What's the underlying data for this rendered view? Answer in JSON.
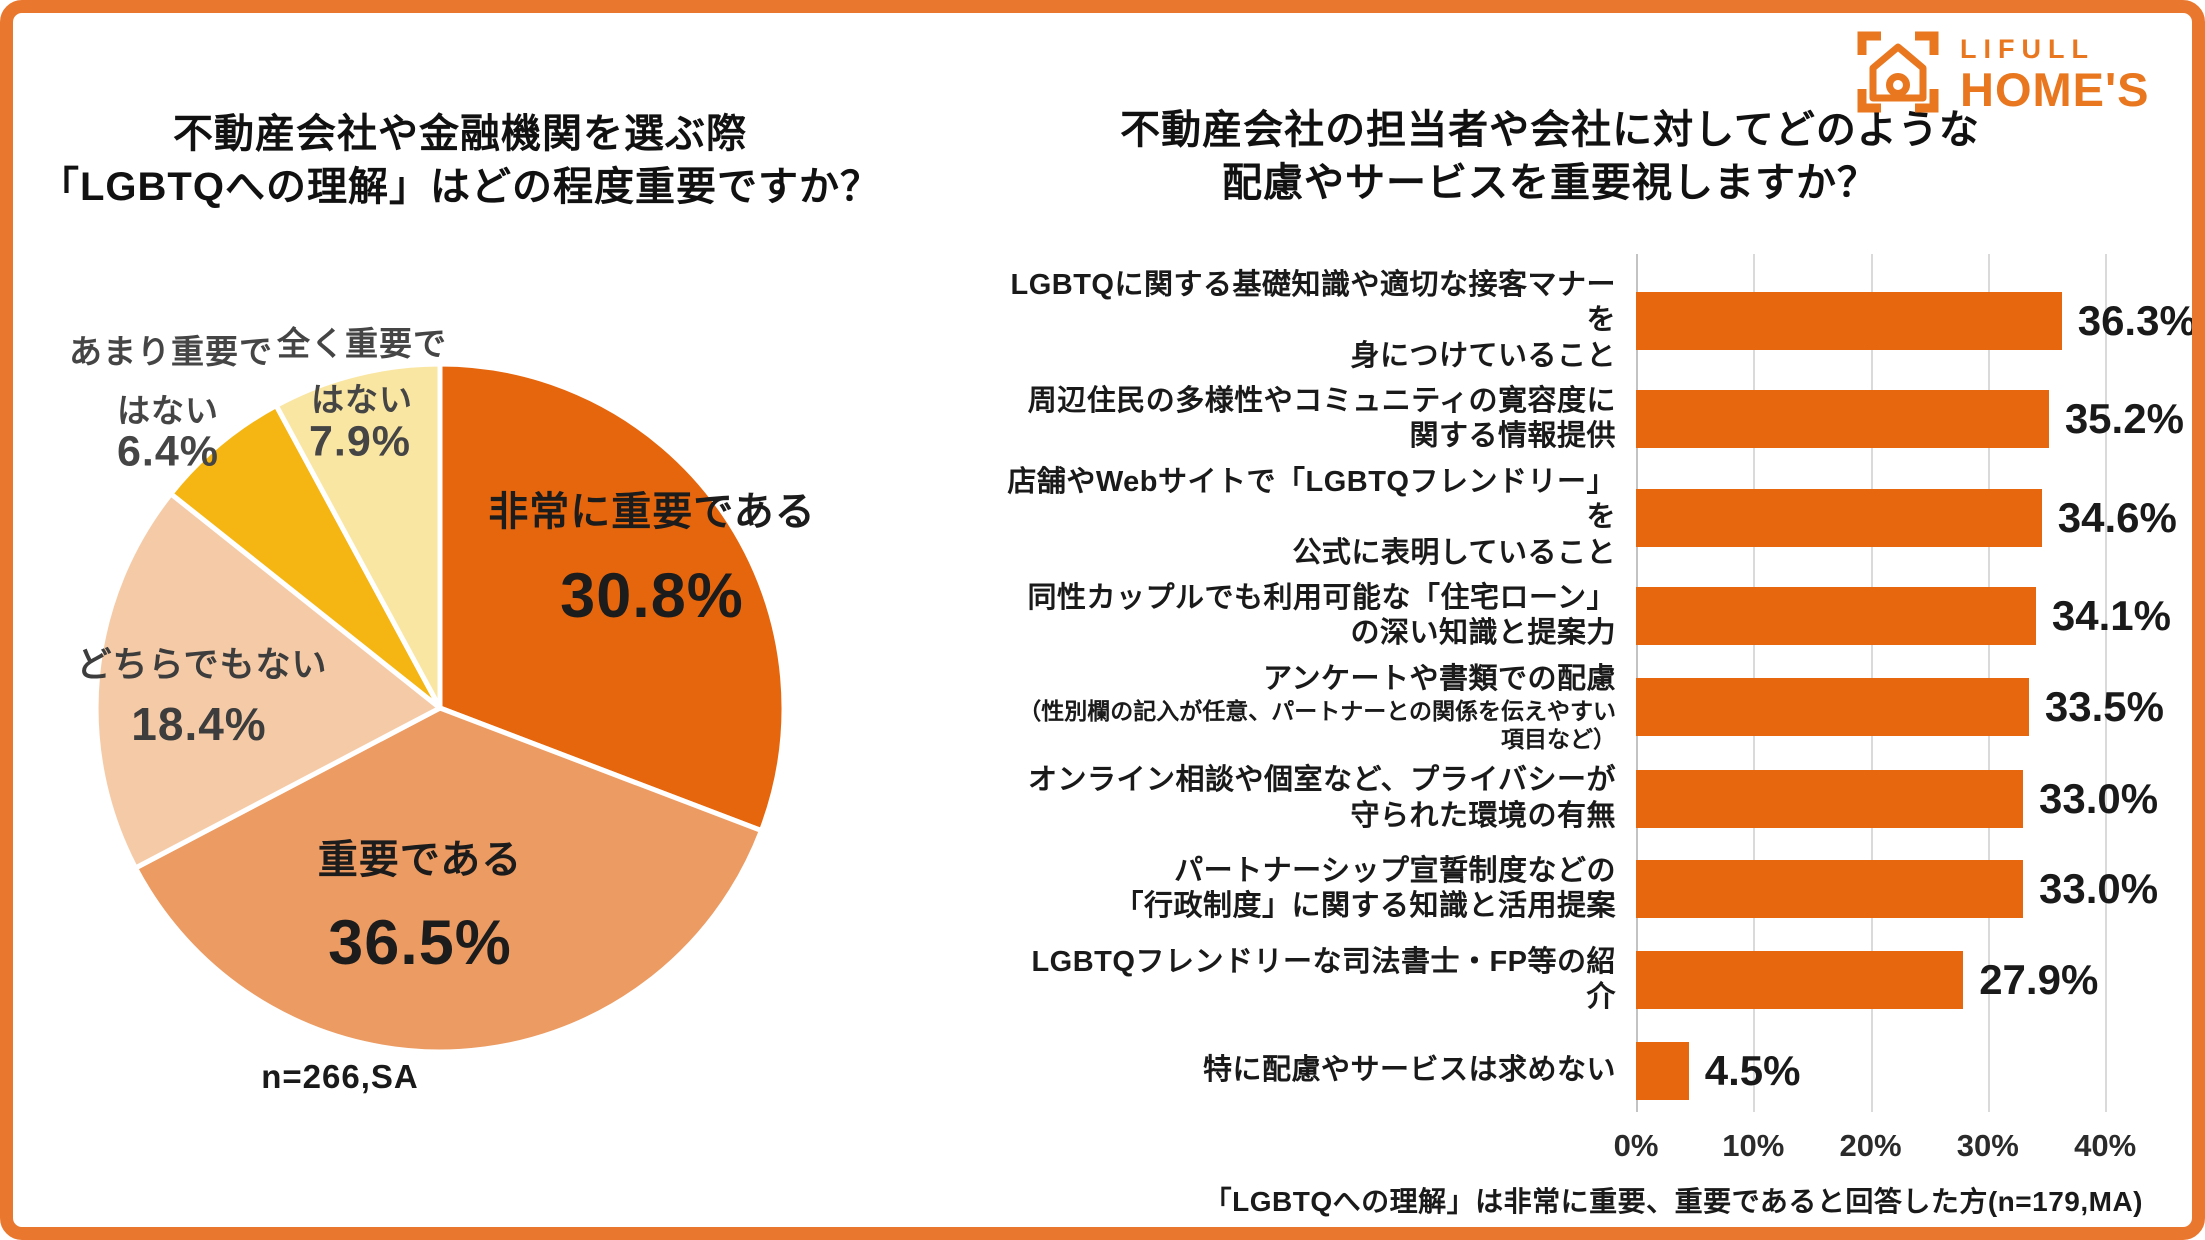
{
  "logo": {
    "line1": "LIFULL",
    "line2": "HOME'S",
    "brand_color": "#E8771F"
  },
  "frame_color": "#E9772E",
  "chart_data": [
    {
      "type": "pie",
      "title": "不動産会社や金融機関を選ぶ際「LGBTQへの理解」はどの程度重要ですか？",
      "title_lines": [
        "不動産会社や金融機関を選ぶ際",
        "「LGBTQへの理解」はどの程度重要ですか？"
      ],
      "note": "n=266,SA",
      "start_angle_deg": -90,
      "direction": "clockwise",
      "segments": [
        {
          "label": "非常に重要である",
          "label_lines": [
            "非常に重要である"
          ],
          "value": 30.8,
          "value_text": "30.8%",
          "color": "#E6660D"
        },
        {
          "label": "重要である",
          "label_lines": [
            "重要である"
          ],
          "value": 36.5,
          "value_text": "36.5%",
          "color": "#EC9B62"
        },
        {
          "label": "どちらでもない",
          "label_lines": [
            "どちらでもない"
          ],
          "value": 18.4,
          "value_text": "18.4%",
          "color": "#F5CBA7"
        },
        {
          "label": "あまり重要ではない",
          "label_lines": [
            "あまり重要で",
            "はない"
          ],
          "value": 6.4,
          "value_text": "6.4%",
          "color": "#F5B513"
        },
        {
          "label": "全く重要ではない",
          "label_lines": [
            "全く重要で",
            "はない"
          ],
          "value": 7.9,
          "value_text": "7.9%",
          "color": "#FAE6A3"
        }
      ]
    },
    {
      "type": "bar",
      "orientation": "horizontal",
      "title": "不動産会社の担当者や会社に対してどのような配慮やサービスを重要視しますか？",
      "title_lines": [
        "不動産会社の担当者や会社に対してどのような",
        "配慮やサービスを重要視しますか？"
      ],
      "note": "「LGBTQへの理解」は非常に重要、重要であると回答した方(n=179,MA)",
      "bar_color": "#E7670E",
      "x_ticks": [
        "0%",
        "10%",
        "20%",
        "30%",
        "40%"
      ],
      "x_tick_values": [
        0,
        10,
        20,
        30,
        40
      ],
      "xlim": [
        0,
        40
      ],
      "grid": true,
      "categories": [
        [
          "LGBTQに関する基礎知識や適切な接客マナーを",
          "身につけていること"
        ],
        [
          "周辺住民の多様性やコミュニティの寛容度に関する情報提供"
        ],
        [
          "店舗やWebサイトで「LGBTQフレンドリー」を",
          "公式に表明していること"
        ],
        [
          "同性カップルでも利用可能な「住宅ローン」の深い知識と提案力"
        ],
        [
          "アンケートや書類での配慮",
          "（性別欄の記入が任意、パートナーとの関係を伝えやすい項目など）"
        ],
        [
          "オンライン相談や個室など、プライバシーが守られた環境の有無"
        ],
        [
          "パートナーシップ宣誓制度などの",
          "「行政制度」に関する知識と活用提案"
        ],
        [
          "LGBTQフレンドリーな司法書士・FP等の紹介"
        ],
        [
          "特に配慮やサービスは求めない"
        ]
      ],
      "values": [
        36.3,
        35.2,
        34.6,
        34.1,
        33.5,
        33.0,
        33.0,
        27.9,
        4.5
      ],
      "value_labels": [
        "36.3%",
        "35.2%",
        "34.6%",
        "34.1%",
        "33.5%",
        "33.0%",
        "33.0%",
        "27.9%",
        "4.5%"
      ]
    }
  ]
}
